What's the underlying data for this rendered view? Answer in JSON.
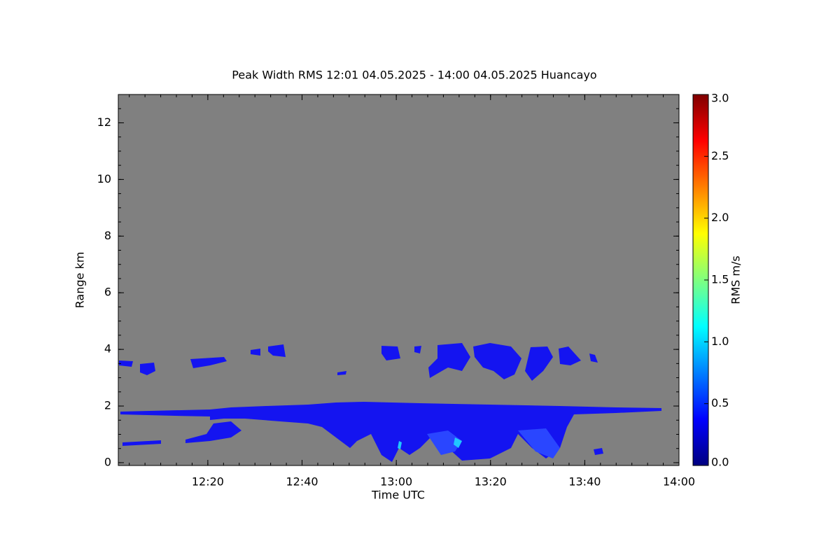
{
  "chart_data": {
    "type": "heatmap",
    "title": "Peak Width RMS   12:01 04.05.2025 - 14:00 04.05.2025 Huancayo",
    "x_label": "Time UTC",
    "y_label": "Range km",
    "xlim": [
      721,
      840
    ],
    "xticks": [
      {
        "value": 740,
        "label": "12:20"
      },
      {
        "value": 760,
        "label": "12:40"
      },
      {
        "value": 780,
        "label": "13:00"
      },
      {
        "value": 800,
        "label": "13:20"
      },
      {
        "value": 820,
        "label": "13:40"
      },
      {
        "value": 840,
        "label": "14:00"
      }
    ],
    "ylim": [
      -0.1,
      13
    ],
    "yticks": [
      0,
      2,
      4,
      6,
      8,
      10,
      12
    ],
    "background_color": "#808080",
    "colorbar": {
      "label": "RMS m/s",
      "lim": [
        0,
        3
      ],
      "ticks": [
        {
          "value": 0,
          "label": "0.0"
        },
        {
          "value": 0.5,
          "label": "0.5"
        },
        {
          "value": 1,
          "label": "1.0"
        },
        {
          "value": 1.5,
          "label": "1.5"
        },
        {
          "value": 2,
          "label": "2.0"
        },
        {
          "value": 2.5,
          "label": "2.5"
        },
        {
          "value": 3,
          "label": "3.0"
        }
      ],
      "colormap": [
        "#00007f",
        "#0000ff",
        "#007fff",
        "#00ffff",
        "#7fff7f",
        "#ffff00",
        "#ff7f00",
        "#ff0000",
        "#7f0000"
      ]
    }
  }
}
